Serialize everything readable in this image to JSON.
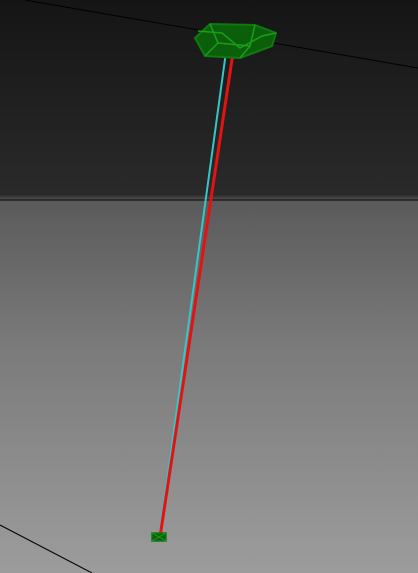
{
  "viewport": {
    "name": "3d-viewport",
    "background_top": "#151515",
    "background_bottom": "#9c9c9c"
  },
  "scene": {
    "colors": {
      "wireframe": "#0e7a0e",
      "wireframe_fill": "#0b5f0b",
      "cable": "#e51212",
      "cable_shadow": "#35c6c6",
      "grid_line": "#000000"
    },
    "objects": [
      {
        "name": "top-anchor-wireframe",
        "kind": "wireframe"
      },
      {
        "name": "bottom-anchor-wireframe",
        "kind": "wireframe"
      },
      {
        "name": "cable-line",
        "kind": "line"
      },
      {
        "name": "cable-guide-line",
        "kind": "line"
      }
    ]
  }
}
